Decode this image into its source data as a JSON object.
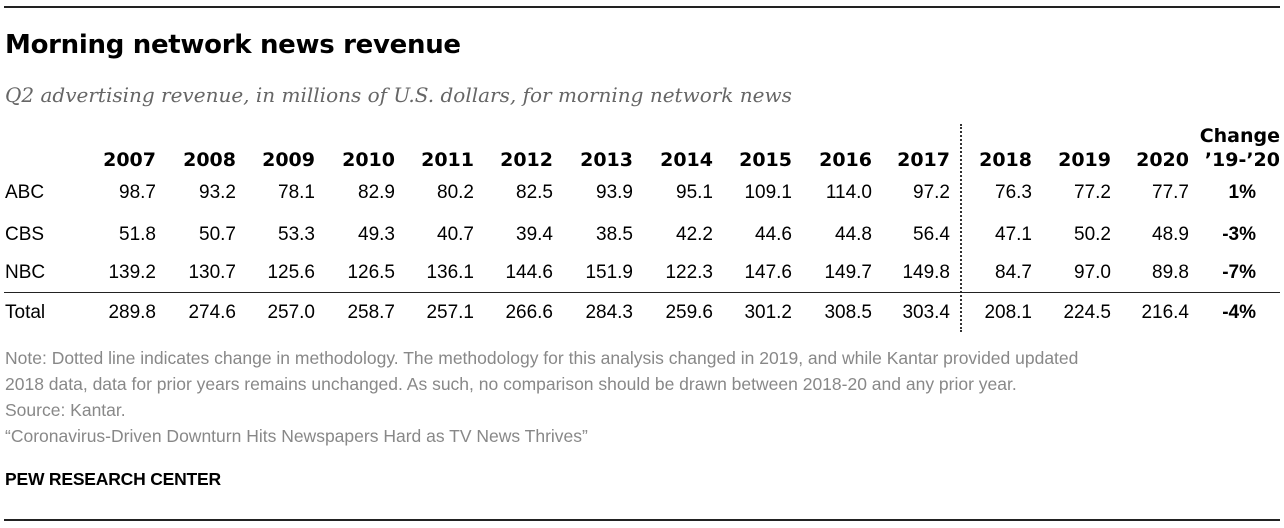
{
  "title": "Morning network news revenue",
  "subtitle": "Q2 advertising revenue, in millions of U.S. dollars, for morning network news",
  "chart_data": {
    "type": "table",
    "columns": [
      "2007",
      "2008",
      "2009",
      "2010",
      "2011",
      "2012",
      "2013",
      "2014",
      "2015",
      "2016",
      "2017",
      "2018",
      "2019",
      "2020"
    ],
    "change_header": [
      "Change",
      "’19-’20"
    ],
    "rows": [
      {
        "label": "ABC",
        "values": [
          "98.7",
          "93.2",
          "78.1",
          "82.9",
          "80.2",
          "82.5",
          "93.9",
          "95.1",
          "109.1",
          "114.0",
          "97.2",
          "76.3",
          "77.2",
          "77.7"
        ],
        "change": "1%"
      },
      {
        "label": "CBS",
        "values": [
          "51.8",
          "50.7",
          "53.3",
          "49.3",
          "40.7",
          "39.4",
          "38.5",
          "42.2",
          "44.6",
          "44.8",
          "56.4",
          "47.1",
          "50.2",
          "48.9"
        ],
        "change": "-3%"
      },
      {
        "label": "NBC",
        "values": [
          "139.2",
          "130.7",
          "125.6",
          "126.5",
          "136.1",
          "144.6",
          "151.9",
          "122.3",
          "147.6",
          "149.7",
          "149.8",
          "84.7",
          "97.0",
          "89.8"
        ],
        "change": "-7%"
      },
      {
        "label": "Total",
        "values": [
          "289.8",
          "274.6",
          "257.0",
          "258.7",
          "257.1",
          "266.6",
          "284.3",
          "259.6",
          "301.2",
          "308.5",
          "303.4",
          "208.1",
          "224.5",
          "216.4"
        ],
        "change": "-4%"
      }
    ]
  },
  "notes": [
    "Note: Dotted line indicates change in methodology. The methodology for this analysis changed in 2019, and while Kantar provided updated",
    "2018 data, data for prior years remains unchanged. As such, no comparison should be drawn between 2018-20 and any prior year.",
    "Source: Kantar.",
    "“Coronavirus-Driven Downturn Hits Newspapers Hard as TV News Thrives”"
  ],
  "brand": "PEW RESEARCH CENTER"
}
